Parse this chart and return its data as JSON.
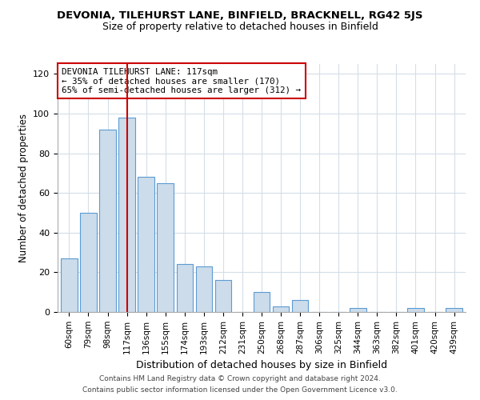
{
  "title": "DEVONIA, TILEHURST LANE, BINFIELD, BRACKNELL, RG42 5JS",
  "subtitle": "Size of property relative to detached houses in Binfield",
  "xlabel": "Distribution of detached houses by size in Binfield",
  "ylabel": "Number of detached properties",
  "bar_labels": [
    "60sqm",
    "79sqm",
    "98sqm",
    "117sqm",
    "136sqm",
    "155sqm",
    "174sqm",
    "193sqm",
    "212sqm",
    "231sqm",
    "250sqm",
    "268sqm",
    "287sqm",
    "306sqm",
    "325sqm",
    "344sqm",
    "363sqm",
    "382sqm",
    "401sqm",
    "420sqm",
    "439sqm"
  ],
  "bar_values": [
    27,
    50,
    92,
    98,
    68,
    65,
    24,
    23,
    16,
    0,
    10,
    3,
    6,
    0,
    0,
    2,
    0,
    0,
    2,
    0,
    2
  ],
  "bar_color": "#ccdcea",
  "bar_edge_color": "#5b9bd5",
  "highlight_index": 3,
  "highlight_line_color": "#cc0000",
  "annotation_title": "DEVONIA TILEHURST LANE: 117sqm",
  "annotation_line1": "← 35% of detached houses are smaller (170)",
  "annotation_line2": "65% of semi-detached houses are larger (312) →",
  "annotation_box_color": "#ffffff",
  "annotation_box_edge_color": "#cc0000",
  "ylim": [
    0,
    125
  ],
  "yticks": [
    0,
    20,
    40,
    60,
    80,
    100,
    120
  ],
  "footer1": "Contains HM Land Registry data © Crown copyright and database right 2024.",
  "footer2": "Contains public sector information licensed under the Open Government Licence v3.0.",
  "background_color": "#ffffff",
  "grid_color": "#d4dde8"
}
